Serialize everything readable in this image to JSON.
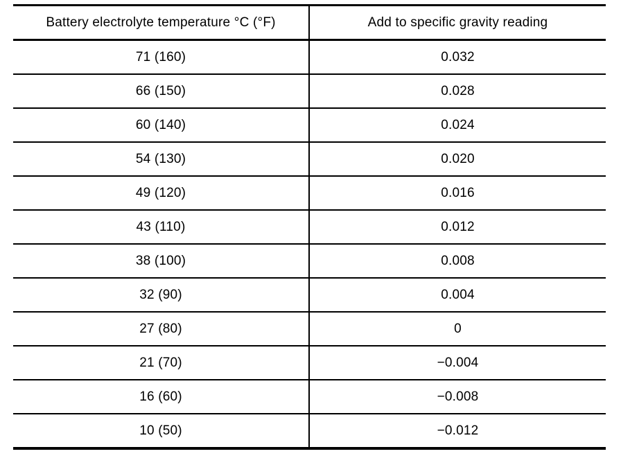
{
  "table": {
    "name": "battery-electrolyte-temperature-correction",
    "columns": [
      "Battery electrolyte temperature °C (°F)",
      "Add to specific gravity reading"
    ],
    "rows": [
      {
        "temp": "71 (160)",
        "correction": "0.032"
      },
      {
        "temp": "66 (150)",
        "correction": "0.028"
      },
      {
        "temp": "60 (140)",
        "correction": "0.024"
      },
      {
        "temp": "54 (130)",
        "correction": "0.020"
      },
      {
        "temp": "49 (120)",
        "correction": "0.016"
      },
      {
        "temp": "43 (110)",
        "correction": "0.012"
      },
      {
        "temp": "38 (100)",
        "correction": "0.008"
      },
      {
        "temp": "32 (90)",
        "correction": "0.004"
      },
      {
        "temp": "27 (80)",
        "correction": "0"
      },
      {
        "temp": "21 (70)",
        "correction": "−0.004"
      },
      {
        "temp": "16 (60)",
        "correction": "−0.008"
      },
      {
        "temp": "10 (50)",
        "correction": "−0.012"
      }
    ]
  },
  "colors": {
    "text": "#000000",
    "border": "#000000",
    "background": "#ffffff"
  }
}
